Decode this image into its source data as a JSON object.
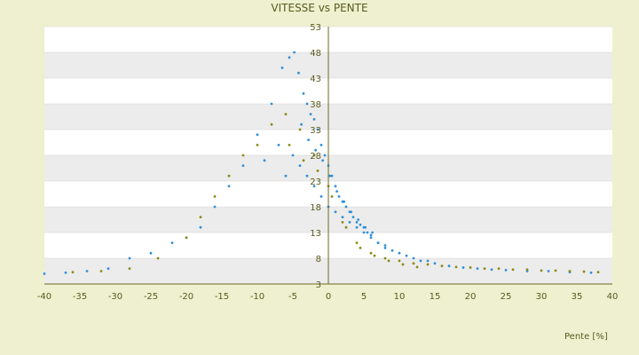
{
  "chart_data": {
    "type": "scatter",
    "title": "VITESSE vs PENTE",
    "xlabel": "Pente [%]",
    "ylabel": "",
    "xlim": [
      -40,
      40
    ],
    "ylim": [
      3,
      53
    ],
    "x_ticks": [
      "-40",
      "-35",
      "-30",
      "-25",
      "-20",
      "-15",
      "-10",
      "-5",
      "0",
      "5",
      "10",
      "15",
      "20",
      "25",
      "30",
      "35",
      "40"
    ],
    "y_ticks": [
      "53",
      "48",
      "43",
      "38",
      "33",
      "28",
      "23",
      "18",
      "13",
      "8",
      "3"
    ],
    "grid": true,
    "colors": {
      "series_blue": "#2f8fd8",
      "series_olive": "#8a8a12",
      "band": "#ececec",
      "axis": "#6b6b20",
      "frame_bg": "#eef0cf",
      "plot_bg": "#ffffff"
    },
    "series": [
      {
        "color": "#2f8fd8",
        "x": [
          -6.5,
          -5.5,
          -4.8,
          -4.2,
          -3.5,
          -3,
          -2.5,
          -2,
          -1.5,
          -1,
          -0.5,
          0,
          0.5,
          1,
          1.5,
          2,
          2.5,
          3,
          3.5,
          4,
          4.5,
          5,
          5.5,
          6,
          7,
          8,
          9,
          10,
          11,
          12,
          13,
          14,
          15,
          17,
          19,
          21,
          23,
          25,
          28,
          31,
          34,
          37,
          -8,
          -10,
          -12,
          -14,
          -16,
          -18,
          -20,
          -22,
          -25,
          -28,
          -31,
          -34,
          -37,
          -40,
          -3.8,
          -2.8,
          -1.8,
          -0.8,
          0.2,
          1.2,
          2.2,
          3.2,
          4.2,
          5.2,
          6.2,
          -5,
          -4,
          -3,
          -2,
          -1,
          0,
          1,
          2,
          3,
          4,
          5,
          6,
          7,
          8,
          -6,
          -7,
          -9
        ],
        "y": [
          45,
          47,
          48,
          44,
          40,
          38,
          36,
          35,
          33,
          30,
          28,
          26,
          24,
          22,
          20,
          19,
          18,
          17,
          16,
          15,
          14.5,
          14,
          13,
          12.5,
          11,
          10,
          9.5,
          9,
          8.5,
          8,
          7.5,
          7.5,
          7,
          6.5,
          6.2,
          6,
          5.8,
          5.7,
          5.5,
          5.5,
          5.3,
          5.2,
          38,
          32,
          26,
          22,
          18,
          14,
          12,
          11,
          9,
          8,
          6,
          5.5,
          5.2,
          5,
          34,
          31,
          29,
          27,
          24,
          21,
          19,
          17,
          15.5,
          14,
          13,
          28,
          26,
          24,
          22,
          20,
          18,
          17,
          16,
          15,
          14,
          13,
          12,
          11,
          10.5,
          24,
          30,
          27
        ]
      },
      {
        "color": "#8a8a12",
        "x": [
          -14,
          -12,
          -10,
          -8,
          -6,
          -4,
          -2,
          0,
          2,
          4,
          6,
          8,
          10,
          12,
          14,
          16,
          18,
          20,
          22,
          24,
          26,
          28,
          30,
          32,
          34,
          36,
          38,
          -16,
          -18,
          -20,
          -24,
          -28,
          -32,
          -36,
          -5.5,
          -3.5,
          -1.5,
          0.5,
          2.5,
          4.5,
          6.5,
          8.5,
          10.5,
          12.5
        ],
        "y": [
          24,
          28,
          30,
          34,
          36,
          33,
          28,
          22,
          15,
          11,
          9,
          8,
          7.5,
          7,
          6.8,
          6.5,
          6.3,
          6.2,
          6,
          6,
          5.8,
          5.8,
          5.6,
          5.6,
          5.5,
          5.4,
          5.3,
          20,
          16,
          12,
          8,
          6,
          5.5,
          5.3,
          30,
          27,
          25,
          20,
          14,
          10,
          8.5,
          7.5,
          6.8,
          6.3
        ]
      }
    ]
  }
}
